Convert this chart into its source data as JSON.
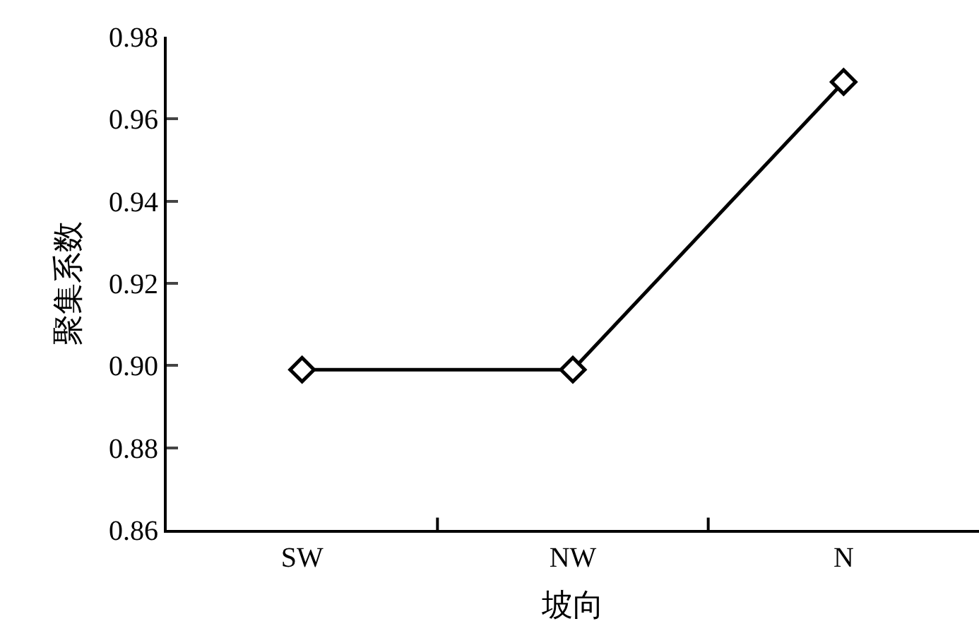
{
  "chart_data": {
    "type": "line",
    "xlabel": "坡向",
    "ylabel": "聚集系数",
    "categories": [
      "SW",
      "NW",
      "N"
    ],
    "series": [
      {
        "color": "#000000",
        "values": [
          0.899,
          0.899,
          0.969
        ]
      }
    ],
    "ylim": [
      0.86,
      0.98
    ],
    "yticks": [
      {
        "value": 0.86,
        "label": "0.86"
      },
      {
        "value": 0.88,
        "label": "0.88"
      },
      {
        "value": 0.9,
        "label": "0.90"
      },
      {
        "value": 0.92,
        "label": "0.92"
      },
      {
        "value": 0.94,
        "label": "0.94"
      },
      {
        "value": 0.96,
        "label": "0.96"
      },
      {
        "value": 0.98,
        "label": "0.98"
      }
    ],
    "marker": "diamond",
    "line_style": "solid",
    "legend": false
  }
}
